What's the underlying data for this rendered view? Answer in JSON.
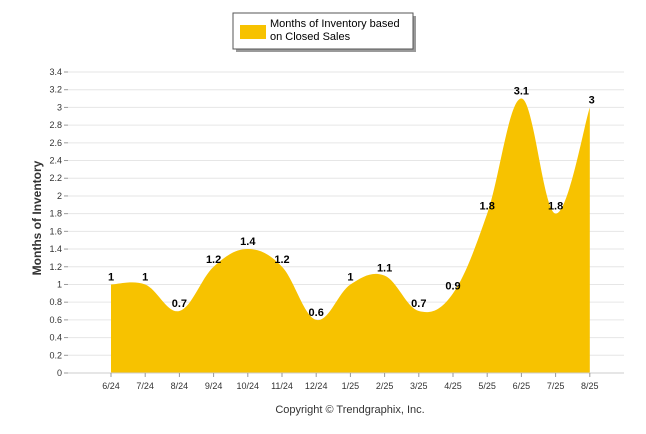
{
  "legend": {
    "line1": "Months of Inventory based",
    "line2": "on Closed Sales",
    "color": "#f7c200"
  },
  "credit": "Copyright © Trendgraphix, Inc.",
  "chart_data": {
    "type": "area",
    "categories": [
      "6/24",
      "7/24",
      "8/24",
      "9/24",
      "10/24",
      "11/24",
      "12/24",
      "1/25",
      "2/25",
      "3/25",
      "4/25",
      "5/25",
      "6/25",
      "7/25",
      "8/25"
    ],
    "series": [
      {
        "name": "Months of Inventory based on Closed Sales",
        "values": [
          1,
          1,
          0.7,
          1.2,
          1.4,
          1.2,
          0.6,
          1,
          1.1,
          0.7,
          0.9,
          1.8,
          3.1,
          1.8,
          3
        ],
        "labels": [
          "1",
          "1",
          "0.7",
          "1.2",
          "1.4",
          "1.2",
          "0.6",
          "1",
          "1.1",
          "0.7",
          "0.9",
          "1.8",
          "3.1",
          "1.8",
          "3"
        ],
        "color": "#f7c200"
      }
    ],
    "ylabel": "Months of Inventory",
    "ylim": [
      0,
      3.4
    ],
    "yticks": [
      0,
      0.2,
      0.4,
      0.6,
      0.8,
      1,
      1.2,
      1.4,
      1.6,
      1.8,
      2,
      2.2,
      2.4,
      2.6,
      2.8,
      3,
      3.2,
      3.4
    ],
    "ytick_labels": [
      "0",
      "0.2",
      "0.4",
      "0.6",
      "0.8",
      "1",
      "1.2",
      "1.4",
      "1.6",
      "1.8",
      "2",
      "2.2",
      "2.4",
      "2.6",
      "2.8",
      "3",
      "3.2",
      "3.4"
    ],
    "grid": true,
    "legend_position": "top-center"
  }
}
